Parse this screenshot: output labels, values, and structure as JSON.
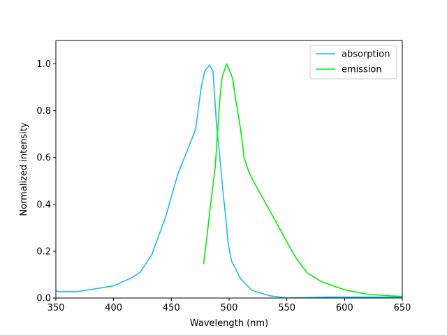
{
  "chart_data": {
    "type": "line",
    "title": "",
    "xlabel": "Wavelength (nm)",
    "ylabel": "Normalized intensity",
    "xlim": [
      350,
      650
    ],
    "ylim": [
      0,
      1.1
    ],
    "xticks": [
      350,
      400,
      450,
      500,
      550,
      600,
      650
    ],
    "xtick_labels": [
      "350",
      "400",
      "450",
      "500",
      "550",
      "600",
      "650"
    ],
    "yticks": [
      0.0,
      0.2,
      0.4,
      0.6,
      0.8,
      1.0
    ],
    "ytick_labels": [
      "0.0",
      "0.2",
      "0.4",
      "0.6",
      "0.8",
      "1.0"
    ],
    "grid": false,
    "legend_position": "top-right",
    "series": [
      {
        "name": "absorption",
        "color": "#1bbcf0",
        "x": [
          350,
          353,
          358,
          368,
          380,
          400,
          415,
          423,
          433,
          445,
          451,
          456,
          463,
          471,
          476,
          479,
          483,
          486,
          489,
          492,
          495,
          497,
          499,
          502,
          510,
          520,
          535,
          550,
          560,
          583,
          600,
          620,
          650
        ],
        "y": [
          0.03,
          0.027,
          0.027,
          0.027,
          0.036,
          0.052,
          0.085,
          0.11,
          0.185,
          0.345,
          0.45,
          0.535,
          0.62,
          0.72,
          0.905,
          0.97,
          0.995,
          0.97,
          0.75,
          0.6,
          0.44,
          0.35,
          0.24,
          0.16,
          0.082,
          0.032,
          0.01,
          0.0,
          0.001,
          0.004,
          0.004,
          0.004,
          0.004
        ]
      },
      {
        "name": "emission",
        "color": "#00ee00",
        "x": [
          478,
          481,
          484,
          488,
          492,
          494,
          498,
          503,
          506,
          510,
          513,
          517,
          522,
          530,
          540,
          550,
          558,
          568,
          580,
          600,
          620,
          640,
          650
        ],
        "y": [
          0.146,
          0.27,
          0.4,
          0.56,
          0.85,
          0.945,
          1.0,
          0.94,
          0.84,
          0.72,
          0.6,
          0.54,
          0.49,
          0.42,
          0.33,
          0.24,
          0.17,
          0.106,
          0.07,
          0.035,
          0.016,
          0.009,
          0.007
        ]
      }
    ]
  }
}
